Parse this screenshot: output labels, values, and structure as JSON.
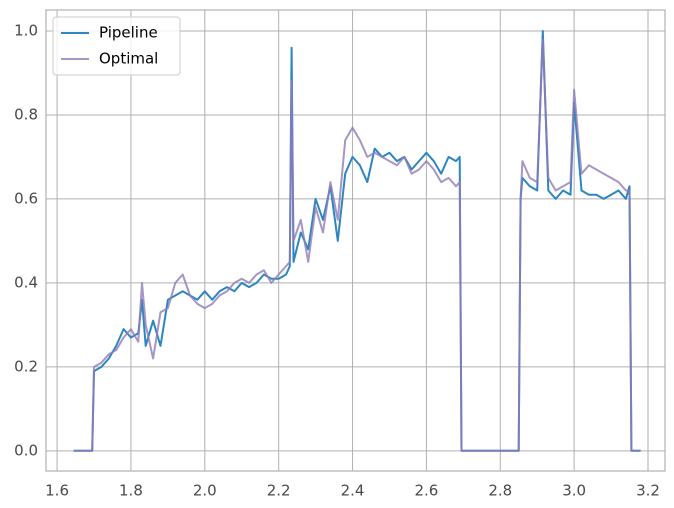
{
  "chart_data": {
    "type": "line",
    "x": [
      1.645,
      1.695,
      1.7,
      1.72,
      1.74,
      1.76,
      1.78,
      1.8,
      1.82,
      1.83,
      1.84,
      1.86,
      1.88,
      1.9,
      1.92,
      1.94,
      1.96,
      1.98,
      2.0,
      2.02,
      2.04,
      2.06,
      2.08,
      2.1,
      2.12,
      2.14,
      2.16,
      2.18,
      2.2,
      2.22,
      2.23,
      2.235,
      2.24,
      2.26,
      2.28,
      2.3,
      2.32,
      2.34,
      2.36,
      2.38,
      2.4,
      2.42,
      2.44,
      2.46,
      2.48,
      2.5,
      2.52,
      2.54,
      2.56,
      2.58,
      2.6,
      2.62,
      2.64,
      2.66,
      2.68,
      2.69,
      2.695,
      2.85,
      2.855,
      2.86,
      2.88,
      2.9,
      2.915,
      2.93,
      2.95,
      2.97,
      2.99,
      3.0,
      3.02,
      3.04,
      3.06,
      3.08,
      3.1,
      3.12,
      3.14,
      3.15,
      3.155,
      3.18
    ],
    "series": [
      {
        "name": "Pipeline",
        "color": "#2e86c1",
        "values": [
          0,
          0,
          0.19,
          0.2,
          0.22,
          0.25,
          0.29,
          0.27,
          0.28,
          0.36,
          0.25,
          0.31,
          0.25,
          0.36,
          0.37,
          0.38,
          0.37,
          0.36,
          0.38,
          0.36,
          0.38,
          0.39,
          0.38,
          0.4,
          0.39,
          0.4,
          0.42,
          0.41,
          0.41,
          0.42,
          0.44,
          0.96,
          0.45,
          0.52,
          0.48,
          0.6,
          0.55,
          0.63,
          0.5,
          0.66,
          0.7,
          0.68,
          0.64,
          0.72,
          0.7,
          0.71,
          0.69,
          0.7,
          0.67,
          0.69,
          0.71,
          0.69,
          0.66,
          0.7,
          0.69,
          0.7,
          0,
          0,
          0.6,
          0.65,
          0.63,
          0.62,
          1.0,
          0.62,
          0.6,
          0.62,
          0.61,
          0.83,
          0.62,
          0.61,
          0.61,
          0.6,
          0.61,
          0.62,
          0.6,
          0.63,
          0,
          0
        ]
      },
      {
        "name": "Optimal",
        "color": "#8e7cb8",
        "values": [
          0,
          0,
          0.2,
          0.21,
          0.23,
          0.24,
          0.27,
          0.29,
          0.26,
          0.4,
          0.3,
          0.22,
          0.33,
          0.34,
          0.4,
          0.42,
          0.37,
          0.35,
          0.34,
          0.35,
          0.37,
          0.38,
          0.4,
          0.41,
          0.4,
          0.42,
          0.43,
          0.4,
          0.42,
          0.44,
          0.45,
          0.88,
          0.5,
          0.55,
          0.45,
          0.58,
          0.52,
          0.64,
          0.55,
          0.74,
          0.77,
          0.74,
          0.7,
          0.71,
          0.7,
          0.69,
          0.68,
          0.7,
          0.66,
          0.67,
          0.69,
          0.67,
          0.64,
          0.65,
          0.63,
          0.64,
          0,
          0,
          0.6,
          0.69,
          0.65,
          0.64,
          0.98,
          0.65,
          0.62,
          0.63,
          0.64,
          0.86,
          0.66,
          0.68,
          0.67,
          0.66,
          0.65,
          0.64,
          0.62,
          0.62,
          0,
          0
        ]
      }
    ],
    "xlim": [
      1.57,
      3.246
    ],
    "ylim": [
      -0.048,
      1.05
    ],
    "xticks": [
      1.6,
      1.8,
      {
        "value": 2,
        "label": "2.0"
      },
      2.2,
      2.4,
      2.6,
      2.8,
      {
        "value": 3,
        "label": "3.0"
      },
      3.2
    ],
    "yticks": [
      {
        "value": 0,
        "label": "0.0"
      },
      0.2,
      0.4,
      0.6,
      0.8,
      {
        "value": 1,
        "label": "1.0"
      }
    ],
    "grid": true,
    "legend": "upper-left"
  }
}
